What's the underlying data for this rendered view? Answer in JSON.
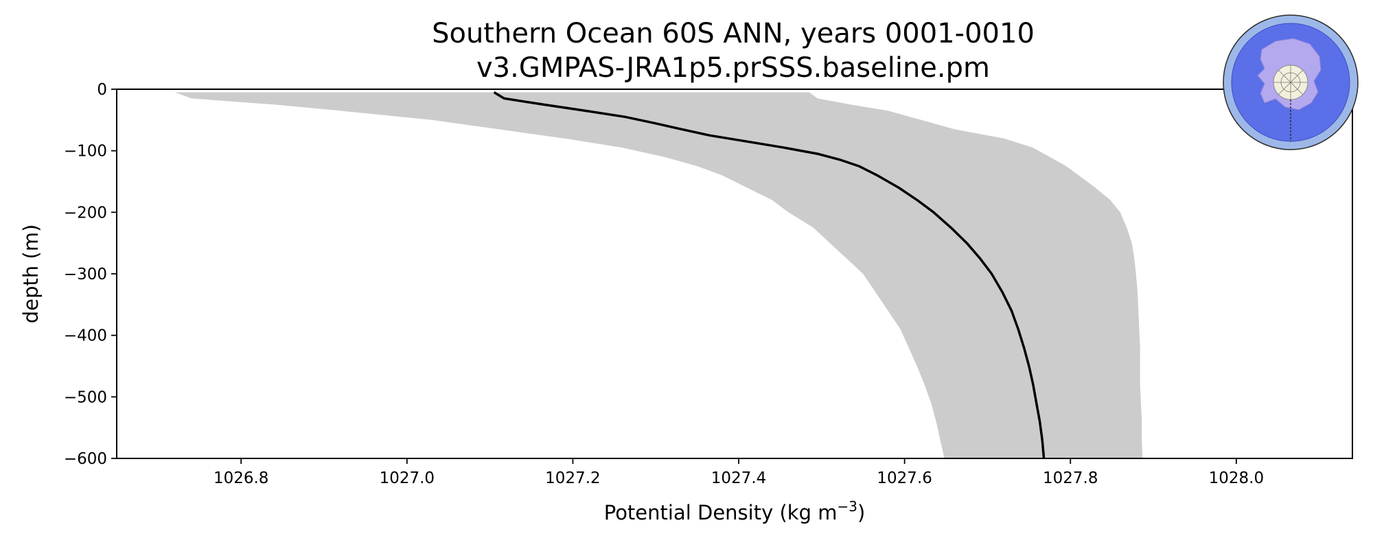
{
  "chart_data": {
    "type": "line",
    "title": "Southern Ocean 60S ANN, years 0001-0010",
    "subtitle": "v3.GMPAS-JRA1p5.prSSS.baseline.pm",
    "xlabel": "Potential Density (kg m",
    "xlabel_superscript": "−3",
    "xlabel_suffix": ")",
    "ylabel": "depth (m)",
    "xlim": [
      1026.65,
      1028.14
    ],
    "ylim": [
      -600,
      0
    ],
    "xticks": [
      1026.8,
      1027.0,
      1027.2,
      1027.4,
      1027.6,
      1027.8,
      1028.0
    ],
    "xtick_labels": [
      "1026.8",
      "1027.0",
      "1027.2",
      "1027.4",
      "1027.6",
      "1027.8",
      "1028.0"
    ],
    "yticks": [
      0,
      -100,
      -200,
      -300,
      -400,
      -500,
      -600
    ],
    "ytick_labels": [
      "0",
      "−100",
      "−200",
      "−300",
      "−400",
      "−500",
      "−600"
    ],
    "grid": false,
    "series": [
      {
        "style": "line",
        "color": "#000000",
        "depth": [
          -5,
          -15,
          -25,
          -35,
          -45,
          -55,
          -65,
          -75,
          -85,
          -95,
          -105,
          -115,
          -125,
          -140,
          -160,
          -180,
          -200,
          -225,
          -250,
          -275,
          -300,
          -330,
          -360,
          -390,
          -420,
          -450,
          -480,
          -510,
          -540,
          -570,
          -600
        ],
        "density": [
          1027.105,
          1027.117,
          1027.165,
          1027.215,
          1027.263,
          1027.298,
          1027.331,
          1027.365,
          1027.41,
          1027.455,
          1027.495,
          1027.523,
          1027.545,
          1027.567,
          1027.593,
          1027.615,
          1027.635,
          1027.656,
          1027.675,
          1027.691,
          1027.705,
          1027.718,
          1027.729,
          1027.737,
          1027.744,
          1027.75,
          1027.755,
          1027.759,
          1027.763,
          1027.766,
          1027.768
        ]
      },
      {
        "style": "band",
        "color": "#cccccc",
        "depth": [
          -5,
          -15,
          -25,
          -35,
          -50,
          -65,
          -80,
          -95,
          -110,
          -125,
          -140,
          -160,
          -180,
          -200,
          -225,
          -250,
          -275,
          -300,
          -330,
          -360,
          -390,
          -420,
          -450,
          -480,
          -510,
          -540,
          -570,
          -600
        ],
        "density_min": [
          1026.72,
          1026.74,
          1026.84,
          1026.92,
          1027.03,
          1027.11,
          1027.19,
          1027.26,
          1027.31,
          1027.35,
          1027.38,
          1027.41,
          1027.44,
          1027.46,
          1027.49,
          1027.51,
          1027.53,
          1027.55,
          1027.565,
          1027.58,
          1027.595,
          1027.605,
          1027.615,
          1027.624,
          1027.632,
          1027.638,
          1027.643,
          1027.648
        ],
        "density_max": [
          1027.485,
          1027.495,
          1027.535,
          1027.58,
          1027.62,
          1027.66,
          1027.72,
          1027.755,
          1027.775,
          1027.795,
          1027.81,
          1027.83,
          1027.848,
          1027.86,
          1027.868,
          1027.874,
          1027.877,
          1027.879,
          1027.881,
          1027.882,
          1027.883,
          1027.884,
          1027.884,
          1027.884,
          1027.885,
          1027.886,
          1027.886,
          1027.887
        ]
      }
    ]
  },
  "inset_map": {
    "icon": "antarctic-globe-icon",
    "ocean_color": "#5a6fe8",
    "ring_color": "#9db8e8",
    "land_color": "#b4a8ee",
    "pole_color": "#f2f0dc"
  }
}
